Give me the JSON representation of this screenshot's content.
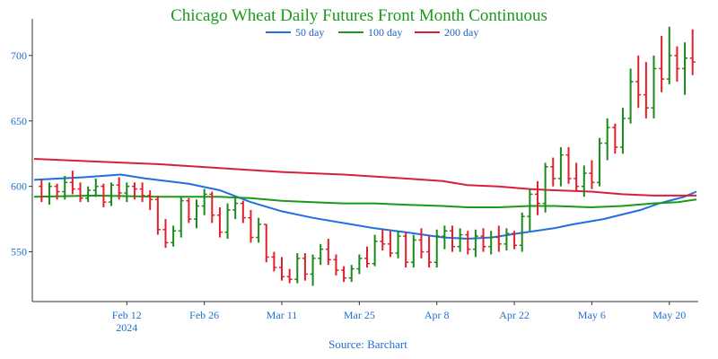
{
  "chart_data": {
    "type": "ohlc",
    "title": "Chicago Wheat Daily Futures Front Month Continuous",
    "source": "Source: Barchart",
    "x_tick_labels": [
      {
        "label": "Feb 12",
        "sublabel": "2024",
        "index": 11
      },
      {
        "label": "Feb 26",
        "sublabel": "",
        "index": 21
      },
      {
        "label": "Mar 11",
        "sublabel": "",
        "index": 31
      },
      {
        "label": "Mar 25",
        "sublabel": "",
        "index": 41
      },
      {
        "label": "Apr 8",
        "sublabel": "",
        "index": 51
      },
      {
        "label": "Apr 22",
        "sublabel": "",
        "index": 61
      },
      {
        "label": "May 6",
        "sublabel": "",
        "index": 71
      },
      {
        "label": "May 20",
        "sublabel": "",
        "index": 81
      }
    ],
    "y_ticks": [
      550,
      600,
      650,
      700
    ],
    "ylim": [
      512,
      728
    ],
    "x_count": 85,
    "grid": false,
    "legend_position": "top",
    "up_color": "#1b8a1b",
    "down_color": "#e0202a",
    "ohlc": [
      [
        600,
        605,
        588,
        592
      ],
      [
        592,
        603,
        586,
        600
      ],
      [
        600,
        602,
        590,
        596
      ],
      [
        596,
        608,
        590,
        603
      ],
      [
        603,
        612,
        594,
        598
      ],
      [
        598,
        603,
        588,
        591
      ],
      [
        591,
        600,
        588,
        597
      ],
      [
        597,
        606,
        592,
        600
      ],
      [
        600,
        602,
        584,
        588
      ],
      [
        588,
        603,
        585,
        601
      ],
      [
        601,
        607,
        590,
        595
      ],
      [
        595,
        603,
        588,
        600
      ],
      [
        600,
        603,
        590,
        598
      ],
      [
        598,
        603,
        588,
        593
      ],
      [
        593,
        597,
        582,
        590
      ],
      [
        590,
        593,
        563,
        567
      ],
      [
        567,
        575,
        553,
        557
      ],
      [
        557,
        570,
        554,
        566
      ],
      [
        566,
        592,
        561,
        589
      ],
      [
        589,
        591,
        572,
        575
      ],
      [
        575,
        590,
        568,
        585
      ],
      [
        585,
        598,
        578,
        594
      ],
      [
        594,
        596,
        572,
        578
      ],
      [
        578,
        584,
        561,
        565
      ],
      [
        565,
        587,
        560,
        582
      ],
      [
        582,
        592,
        575,
        587
      ],
      [
        587,
        589,
        572,
        576
      ],
      [
        576,
        582,
        557,
        561
      ],
      [
        561,
        576,
        557,
        571
      ],
      [
        571,
        571,
        542,
        546
      ],
      [
        546,
        550,
        535,
        538
      ],
      [
        538,
        546,
        528,
        531
      ],
      [
        531,
        537,
        526,
        529
      ],
      [
        529,
        549,
        526,
        545
      ],
      [
        545,
        549,
        528,
        533
      ],
      [
        533,
        548,
        524,
        545
      ],
      [
        545,
        556,
        540,
        552
      ],
      [
        552,
        560,
        540,
        544
      ],
      [
        544,
        548,
        532,
        536
      ],
      [
        536,
        539,
        527,
        530
      ],
      [
        530,
        540,
        527,
        537
      ],
      [
        537,
        548,
        533,
        545
      ],
      [
        545,
        554,
        538,
        541
      ],
      [
        541,
        563,
        539,
        558
      ],
      [
        558,
        567,
        551,
        556
      ],
      [
        556,
        566,
        546,
        549
      ],
      [
        549,
        566,
        545,
        562
      ],
      [
        562,
        565,
        538,
        542
      ],
      [
        542,
        563,
        538,
        559
      ],
      [
        559,
        568,
        545,
        550
      ],
      [
        550,
        562,
        538,
        542
      ],
      [
        542,
        567,
        538,
        562
      ],
      [
        562,
        570,
        552,
        566
      ],
      [
        566,
        570,
        550,
        554
      ],
      [
        554,
        568,
        550,
        563
      ],
      [
        563,
        566,
        548,
        552
      ],
      [
        552,
        567,
        546,
        562
      ],
      [
        562,
        568,
        550,
        554
      ],
      [
        554,
        566,
        548,
        561
      ],
      [
        561,
        570,
        550,
        556
      ],
      [
        556,
        568,
        551,
        564
      ],
      [
        564,
        566,
        552,
        555
      ],
      [
        555,
        580,
        550,
        577
      ],
      [
        577,
        598,
        566,
        594
      ],
      [
        594,
        604,
        578,
        587
      ],
      [
        587,
        618,
        580,
        615
      ],
      [
        615,
        622,
        600,
        606
      ],
      [
        606,
        630,
        600,
        624
      ],
      [
        624,
        630,
        602,
        606
      ],
      [
        606,
        618,
        597,
        600
      ],
      [
        600,
        616,
        592,
        610
      ],
      [
        610,
        620,
        598,
        603
      ],
      [
        603,
        637,
        600,
        633
      ],
      [
        633,
        652,
        620,
        645
      ],
      [
        645,
        648,
        625,
        630
      ],
      [
        630,
        660,
        625,
        652
      ],
      [
        652,
        690,
        648,
        680
      ],
      [
        680,
        700,
        660,
        670
      ],
      [
        670,
        695,
        652,
        660
      ],
      [
        660,
        700,
        652,
        690
      ],
      [
        690,
        715,
        672,
        682
      ],
      [
        682,
        722,
        678,
        700
      ],
      [
        700,
        707,
        680,
        690
      ],
      [
        690,
        710,
        670,
        698
      ],
      [
        698,
        720,
        685,
        695
      ]
    ],
    "series": [
      {
        "name": "50 day",
        "color": "#1f6fe0",
        "points": [
          [
            0,
            605
          ],
          [
            8,
            607
          ],
          [
            14,
            609
          ],
          [
            18,
            606
          ],
          [
            25,
            602
          ],
          [
            30,
            597
          ],
          [
            35,
            588
          ],
          [
            40,
            581
          ],
          [
            45,
            576
          ],
          [
            50,
            572
          ],
          [
            55,
            568
          ],
          [
            60,
            565
          ],
          [
            66,
            561
          ],
          [
            70,
            560
          ],
          [
            74,
            561
          ],
          [
            78,
            564
          ],
          [
            84,
            568
          ],
          [
            87,
            571
          ],
          [
            92,
            575
          ],
          [
            98,
            582
          ],
          [
            101,
            587
          ],
          [
            105,
            592
          ],
          [
            107,
            596
          ]
        ]
      },
      {
        "name": "100 day",
        "color": "#1a9a1a",
        "points": [
          [
            0,
            592
          ],
          [
            10,
            593
          ],
          [
            20,
            592
          ],
          [
            25,
            592
          ],
          [
            30,
            592
          ],
          [
            35,
            591
          ],
          [
            40,
            589
          ],
          [
            45,
            588
          ],
          [
            50,
            587
          ],
          [
            55,
            587
          ],
          [
            60,
            586
          ],
          [
            66,
            585
          ],
          [
            70,
            584
          ],
          [
            75,
            584
          ],
          [
            80,
            585
          ],
          [
            84,
            585
          ],
          [
            90,
            584
          ],
          [
            95,
            585
          ],
          [
            100,
            587
          ],
          [
            104,
            588
          ],
          [
            107,
            590
          ]
        ]
      },
      {
        "name": "200 day",
        "color": "#d8203a",
        "points": [
          [
            0,
            621
          ],
          [
            10,
            619
          ],
          [
            20,
            617
          ],
          [
            30,
            614
          ],
          [
            40,
            611
          ],
          [
            50,
            609
          ],
          [
            60,
            606
          ],
          [
            66,
            604
          ],
          [
            70,
            601
          ],
          [
            75,
            600
          ],
          [
            80,
            598
          ],
          [
            84,
            597
          ],
          [
            90,
            596
          ],
          [
            95,
            594
          ],
          [
            100,
            593
          ],
          [
            104,
            593
          ],
          [
            107,
            593
          ]
        ]
      }
    ]
  }
}
